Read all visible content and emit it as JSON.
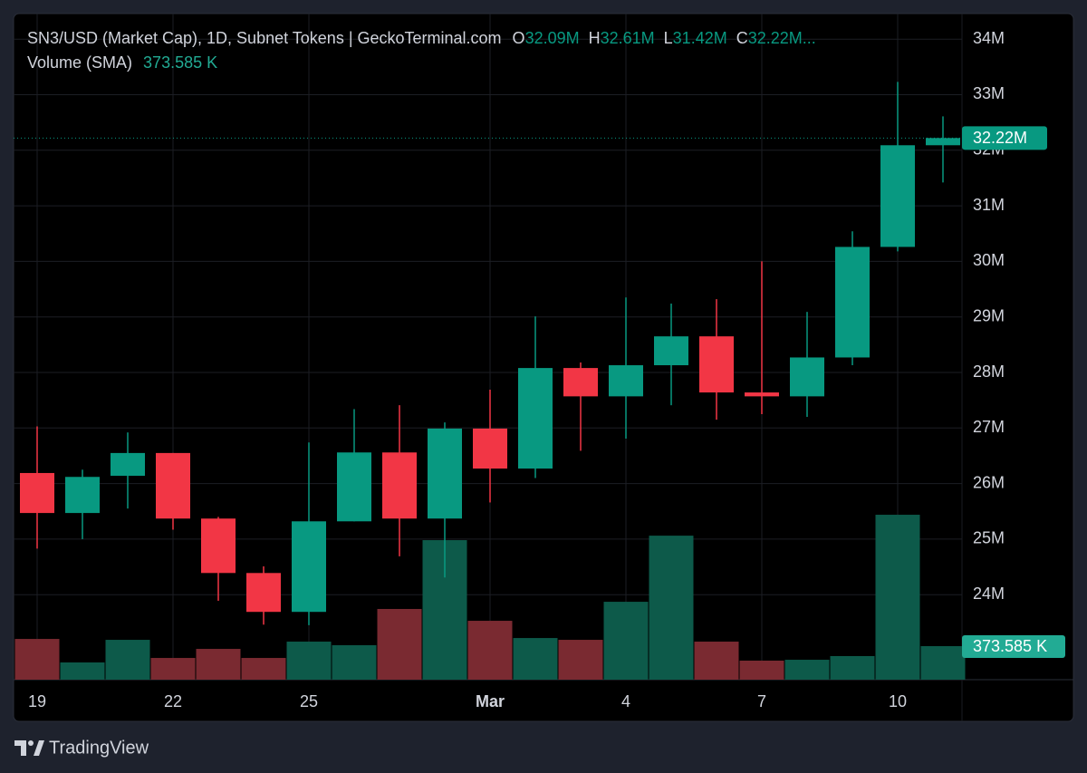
{
  "chart_data": {
    "type": "candlestick",
    "title": "SN3/USD (Market Cap), 1D, Subnet Tokens | GeckoTerminal.com",
    "ohlc_legend": [
      {
        "key": "O",
        "label": "32.09M"
      },
      {
        "key": "H",
        "label": "32.61M"
      },
      {
        "key": "L",
        "label": "31.42M"
      },
      {
        "key": "C",
        "label": "32.22M..."
      }
    ],
    "categories": [
      "19",
      null,
      null,
      "22",
      null,
      null,
      "25",
      null,
      null,
      null,
      "Mar",
      null,
      null,
      "4",
      null,
      null,
      "7",
      null,
      null,
      "10",
      null
    ],
    "open": [
      26.19,
      25.47,
      26.14,
      26.55,
      25.37,
      24.39,
      23.69,
      25.32,
      26.56,
      25.37,
      26.99,
      26.27,
      28.08,
      27.57,
      28.13,
      28.65,
      27.64,
      27.57,
      28.27,
      30.26,
      32.09
    ],
    "high": [
      27.03,
      26.25,
      26.92,
      26.55,
      25.4,
      24.51,
      26.74,
      27.34,
      27.41,
      27.1,
      27.69,
      29.01,
      28.18,
      29.35,
      29.24,
      29.32,
      30.0,
      29.09,
      30.54,
      33.23,
      32.61
    ],
    "low": [
      24.83,
      25.0,
      25.55,
      25.17,
      23.89,
      23.46,
      23.45,
      25.32,
      24.69,
      24.31,
      25.66,
      26.1,
      26.59,
      26.81,
      27.41,
      27.15,
      27.25,
      27.2,
      28.13,
      30.18,
      31.42
    ],
    "close": [
      25.47,
      26.12,
      26.55,
      25.37,
      24.39,
      23.69,
      25.32,
      26.56,
      25.37,
      26.99,
      26.27,
      28.08,
      27.57,
      28.13,
      28.65,
      27.64,
      27.57,
      28.27,
      30.26,
      32.09,
      32.22
    ],
    "up_color": "#089981",
    "down_color": "#f23645",
    "last_price_label": "32.22M",
    "ylim": [
      22.47,
      34.46
    ],
    "yticks": [
      {
        "value": 24,
        "label": "24M"
      },
      {
        "value": 25,
        "label": "25M"
      },
      {
        "value": 26,
        "label": "26M"
      },
      {
        "value": 27,
        "label": "27M"
      },
      {
        "value": 28,
        "label": "28M"
      },
      {
        "value": 29,
        "label": "29M"
      },
      {
        "value": 30,
        "label": "30M"
      },
      {
        "value": 31,
        "label": "31M"
      },
      {
        "value": 32,
        "label": "32M"
      },
      {
        "value": 33,
        "label": "33M"
      },
      {
        "value": 34,
        "label": "34M"
      }
    ],
    "grid": true,
    "volume": {
      "name": "Volume (SMA)",
      "axis": "y2",
      "values": [
        454,
        192,
        444,
        242,
        343,
        242,
        424,
        384,
        788,
        1555,
        656,
        464,
        444,
        868,
        1605,
        424,
        212,
        222,
        263,
        1838,
        373.585
      ],
      "last_value_label": "373.585 K",
      "up_color": "#0d5a4a",
      "down_color": "#7a2a31"
    },
    "y2lim": [
      0,
      7424
    ]
  },
  "brand": "TradingView"
}
